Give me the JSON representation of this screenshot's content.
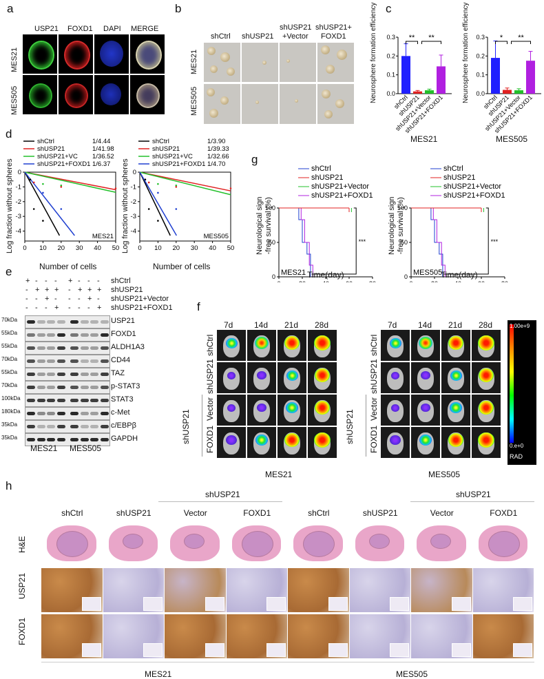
{
  "panels": {
    "a": "a",
    "b": "b",
    "c": "c",
    "d": "d",
    "e": "e",
    "f": "f",
    "g": "g",
    "h": "h"
  },
  "panel_a": {
    "columns": [
      "USP21",
      "FOXD1",
      "DAPI",
      "MERGE"
    ],
    "rows": [
      "MES21",
      "MES505"
    ]
  },
  "panel_b": {
    "columns": [
      "shCtrl",
      "shUSP21",
      "shUSP21\n+Vector",
      "shUSP21+\nFOXD1"
    ],
    "col1": "shCtrl",
    "col2": "shUSP21",
    "col3a": "shUSP21",
    "col3b": "+Vector",
    "col4a": "shUSP21+",
    "col4b": "FOXD1",
    "rows": [
      "MES21",
      "MES505"
    ]
  },
  "panel_c": {
    "ylabel": "Neurosphere formation efficiency",
    "yticks": [
      "0.0",
      "0.1",
      "0.2",
      "0.3"
    ],
    "charts": [
      {
        "title": "MES21",
        "categories": [
          "shCtrl",
          "shUSP21",
          "shUSP21+Vector",
          "shUSP21+FOXD1"
        ],
        "values": [
          0.2,
          0.012,
          0.018,
          0.145
        ],
        "errors": [
          0.065,
          0.005,
          0.006,
          0.06
        ],
        "sig": [
          "**",
          "**"
        ]
      },
      {
        "title": "MES505",
        "categories": [
          "shCtrl",
          "shUSP21",
          "shUSP21+Vector",
          "shUSP21+FOXD1"
        ],
        "values": [
          0.19,
          0.02,
          0.018,
          0.175
        ],
        "errors": [
          0.09,
          0.01,
          0.008,
          0.05
        ],
        "sig": [
          "*",
          "**"
        ]
      }
    ],
    "colors": [
      "#1f1fff",
      "#e02020",
      "#22c02a",
      "#b020e0"
    ]
  },
  "panel_d": {
    "ylabel": "Log fraction without spheres",
    "xlabel": "Number of cells",
    "xticks": [
      "0",
      "10",
      "20",
      "30",
      "40",
      "50"
    ],
    "yticks": [
      "0",
      "-1",
      "-2",
      "-3",
      "-4"
    ],
    "charts": [
      {
        "title": "MES21",
        "legend": [
          {
            "name": "shCtrl",
            "value": "1/4.44",
            "color": "#000000"
          },
          {
            "name": "shUSP21",
            "value": "1/41.98",
            "color": "#e02020"
          },
          {
            "name": "shUSP21+VC",
            "value": "1/36.52",
            "color": "#22c02a"
          },
          {
            "name": "shUSP21+FOXD1",
            "value": "1/6.37",
            "color": "#1f3fd0"
          }
        ]
      },
      {
        "title": "MES505",
        "legend": [
          {
            "name": "shCtrl",
            "value": "1/3.90",
            "color": "#000000"
          },
          {
            "name": "shUSP21",
            "value": "1/39.33",
            "color": "#e02020"
          },
          {
            "name": "shUSP21+VC",
            "value": "1/32.66",
            "color": "#22c02a"
          },
          {
            "name": "shUSP21+FOXD1",
            "value": "1/4.70",
            "color": "#1f3fd0"
          }
        ]
      }
    ]
  },
  "panel_e": {
    "conditions": [
      "shCtrl",
      "shUSP21",
      "shUSP21+Vector",
      "shUSP21+FOXD1"
    ],
    "signs": [
      [
        "+",
        "-",
        "-",
        "-",
        "+",
        "-",
        "-",
        "-"
      ],
      [
        "-",
        "+",
        "+",
        "+",
        "-",
        "+",
        "+",
        "+"
      ],
      [
        "-",
        "-",
        "+",
        "-",
        "-",
        "-",
        "+",
        "-"
      ],
      [
        "-",
        "-",
        "-",
        "+",
        "-",
        "-",
        "-",
        "+"
      ]
    ],
    "rows": [
      {
        "mw": "70kDa",
        "name": "USP21"
      },
      {
        "mw": "55kDa",
        "name": "FOXD1"
      },
      {
        "mw": "55kDa",
        "name": "ALDH1A3"
      },
      {
        "mw": "70kDa",
        "name": "CD44"
      },
      {
        "mw": "55kDa",
        "name": "TAZ"
      },
      {
        "mw": "70kDa",
        "name": "p-STAT3"
      },
      {
        "mw": "100kDa",
        "name": "STAT3"
      },
      {
        "mw": "180kDa",
        "name": "c-Met"
      },
      {
        "mw": "35kDa",
        "name": "c/EBPβ"
      },
      {
        "mw": "35kDa",
        "name": "GAPDH"
      }
    ],
    "groups": [
      "MES21",
      "MES505"
    ]
  },
  "panel_f": {
    "timepoints": [
      "7d",
      "14d",
      "21d",
      "28d"
    ],
    "rows": [
      "shCtrl",
      "shUSP21",
      "Vector",
      "FOXD1"
    ],
    "group_label": "shUSP21",
    "groups": [
      "MES21",
      "MES505"
    ],
    "scale_max": "1.00e+9",
    "scale_min": "0.e+0",
    "scale_unit": "RAD"
  },
  "panel_g": {
    "ylabel": "Neurological sign\n-free survival (%)",
    "ylabel1": "Neurological sign",
    "ylabel2": "-free survival (%)",
    "xlabel": "Time(day)",
    "xticks": [
      "0",
      "20",
      "40",
      "60",
      "80"
    ],
    "yticks": [
      "0",
      "50",
      "100"
    ],
    "sig": "***",
    "legend": [
      {
        "name": "shCtrl",
        "color": "#1f3fd0"
      },
      {
        "name": "shUSP21",
        "color": "#e02020"
      },
      {
        "name": "shUSP21+Vector",
        "color": "#22c02a"
      },
      {
        "name": "shUSP21+FOXD1",
        "color": "#b020e0"
      }
    ],
    "charts": [
      {
        "title": "MES21"
      },
      {
        "title": "MES505"
      }
    ]
  },
  "panel_h": {
    "group_label": "shUSP21",
    "columns": [
      "shCtrl",
      "shUSP21",
      "Vector",
      "FOXD1",
      "shCtrl",
      "shUSP21",
      "Vector",
      "FOXD1"
    ],
    "rows": [
      "H&E",
      "USP21",
      "FOXD1"
    ],
    "groups": [
      "MES21",
      "MES505"
    ]
  }
}
